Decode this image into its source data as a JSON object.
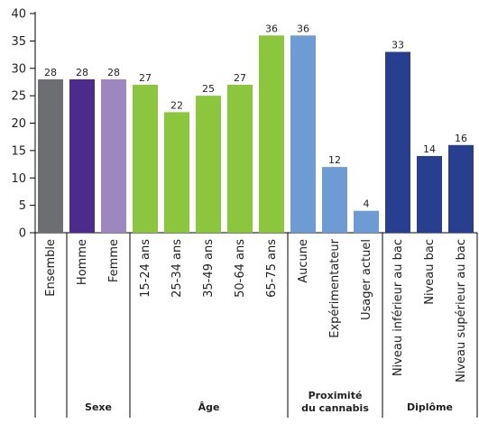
{
  "chart_data": {
    "type": "bar",
    "categories": [
      "Ensemble",
      "Homme",
      "Femme",
      "15-24 ans",
      "25-34 ans",
      "35-49 ans",
      "50-64 ans",
      "65-75 ans",
      "Aucune",
      "Expérimentateur",
      "Usager actuel",
      "Niveau inférieur au bac",
      "Niveau bac",
      "Niveau supérieur au bac"
    ],
    "values": [
      28,
      28,
      28,
      27,
      22,
      25,
      27,
      36,
      36,
      12,
      4,
      33,
      14,
      16
    ],
    "colors": [
      "#6d6e71",
      "#4b2c8c",
      "#9e86bf",
      "#8cc63f",
      "#8cc63f",
      "#8cc63f",
      "#8cc63f",
      "#8cc63f",
      "#6f9bd4",
      "#6f9bd4",
      "#6f9bd4",
      "#283f8f",
      "#283f8f",
      "#283f8f"
    ],
    "groups": [
      {
        "label": "",
        "start": 0,
        "end": 0
      },
      {
        "label": "Sexe",
        "start": 1,
        "end": 2
      },
      {
        "label": "Âge",
        "start": 3,
        "end": 7
      },
      {
        "label": "Proximité\ndu cannabis",
        "start": 8,
        "end": 10
      },
      {
        "label": "Diplôme",
        "start": 11,
        "end": 13
      }
    ],
    "yticks": [
      0,
      5,
      10,
      15,
      20,
      25,
      30,
      35,
      40
    ],
    "ylim": [
      0,
      40
    ]
  }
}
